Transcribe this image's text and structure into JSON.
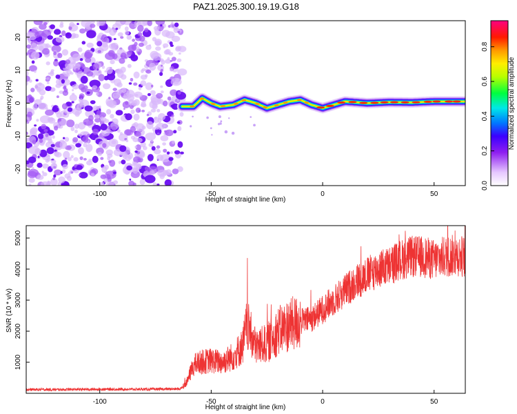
{
  "title": "PAZ1.2025.300.19.19.G18",
  "colors": {
    "snr_line": "#ee3333",
    "frame": "#000000"
  },
  "chart_data": [
    {
      "type": "heatmap",
      "panel": "top",
      "xlabel": "Height of straight line (km)",
      "ylabel": "Frequency (Hz)",
      "xlim": [
        -133,
        64
      ],
      "ylim": [
        -25,
        25
      ],
      "xticks": [
        -100,
        -50,
        0,
        50
      ],
      "xtick_labels": [
        "-100",
        "-50",
        "0",
        "50"
      ],
      "yticks": [
        -20,
        -10,
        0,
        10,
        20
      ],
      "ytick_labels": [
        "-20",
        "-10",
        "0",
        "10",
        "20"
      ],
      "noise_region_x": [
        -133,
        -63
      ],
      "signal_trace": {
        "x": [
          -63,
          -58,
          -54,
          -50,
          -46,
          -40,
          -35,
          -30,
          -25,
          -20,
          -15,
          -10,
          -5,
          0,
          5,
          10,
          20,
          30,
          40,
          50,
          64
        ],
        "freq": [
          -1,
          -1,
          1.5,
          0,
          -1,
          -0.5,
          1,
          0,
          -1.5,
          -0.5,
          0.5,
          1,
          -0.5,
          -1.5,
          -0.5,
          0.5,
          0,
          0.3,
          0.2,
          0.5,
          0.5
        ]
      },
      "colorbar": {
        "label": "Normalized spectral amplitude",
        "range": [
          0,
          0.95
        ],
        "ticks": [
          0.0,
          0.2,
          0.4,
          0.6,
          0.8
        ],
        "tick_labels": [
          "0.0",
          "0.2",
          "0.4",
          "0.6",
          "0.8"
        ]
      }
    },
    {
      "type": "line",
      "panel": "bottom",
      "xlabel": "Height of straight line (km)",
      "ylabel": "SNR (10 * v/v)",
      "xlim": [
        -133,
        64
      ],
      "ylim": [
        0,
        5400
      ],
      "xticks": [
        -100,
        -50,
        0,
        50
      ],
      "xtick_labels": [
        "-100",
        "-50",
        "0",
        "50"
      ],
      "yticks": [
        1000,
        2000,
        3000,
        4000,
        5000
      ],
      "ytick_labels": [
        "1000",
        "2000",
        "3000",
        "4000",
        "5000"
      ],
      "series": [
        {
          "name": "SNR",
          "x": [
            -133,
            -120,
            -100,
            -80,
            -64,
            -61,
            -58,
            -55,
            -50,
            -45,
            -40,
            -36,
            -34,
            -30,
            -25,
            -20,
            -15,
            -10,
            -5,
            0,
            5,
            10,
            15,
            20,
            25,
            30,
            35,
            40,
            45,
            50,
            55,
            60,
            64
          ],
          "values": [
            120,
            120,
            130,
            130,
            140,
            350,
            900,
            1000,
            1050,
            1000,
            1200,
            1500,
            2200,
            1500,
            1600,
            2000,
            2200,
            2300,
            2400,
            2700,
            3000,
            3300,
            3600,
            3800,
            4000,
            4100,
            4300,
            4400,
            4400,
            4300,
            4400,
            4450,
            4400
          ]
        }
      ]
    }
  ]
}
